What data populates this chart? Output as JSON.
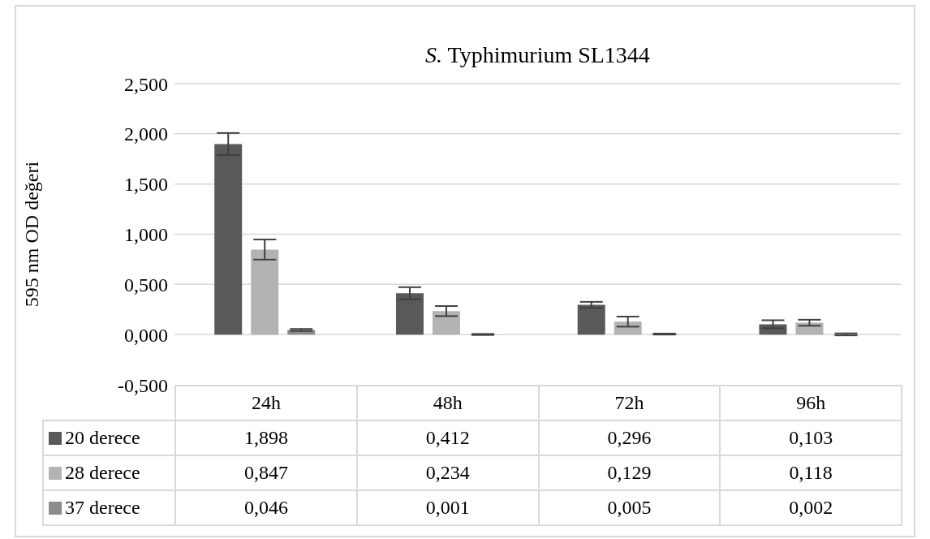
{
  "chart_data": {
    "type": "bar",
    "title": "S. Typhimurium SL1344",
    "ylabel": "595 nm OD değeri",
    "categories": [
      "24h",
      "48h",
      "72h",
      "96h"
    ],
    "series": [
      {
        "name": "20 derece",
        "color": "#595959",
        "values": [
          1.898,
          0.412,
          0.296,
          0.103
        ],
        "errors": [
          0.11,
          0.06,
          0.03,
          0.04
        ],
        "value_labels": [
          "1,898",
          "0,412",
          "0,296",
          "0,103"
        ]
      },
      {
        "name": "28 derece",
        "color": "#b3b3b3",
        "values": [
          0.847,
          0.234,
          0.129,
          0.118
        ],
        "errors": [
          0.1,
          0.05,
          0.05,
          0.03
        ],
        "value_labels": [
          "0,847",
          "0,234",
          "0,129",
          "0,118"
        ]
      },
      {
        "name": "37 derece",
        "color": "#8c8c8c",
        "values": [
          0.046,
          0.001,
          0.005,
          0.002
        ],
        "errors": [
          0.01,
          0.005,
          0.005,
          0.01
        ],
        "value_labels": [
          "0,046",
          "0,001",
          "0,005",
          "0,002"
        ]
      }
    ],
    "ylim": [
      -0.5,
      2.5
    ],
    "yticks": [
      {
        "value": -0.5,
        "label": "-0,500"
      },
      {
        "value": 0,
        "label": "0,000"
      },
      {
        "value": 0.5,
        "label": "0,500"
      },
      {
        "value": 1,
        "label": "1,000"
      },
      {
        "value": 1.5,
        "label": "1,500"
      },
      {
        "value": 2,
        "label": "2,000"
      },
      {
        "value": 2.5,
        "label": "2,500"
      }
    ],
    "grid": "y",
    "legend": "bottom"
  }
}
